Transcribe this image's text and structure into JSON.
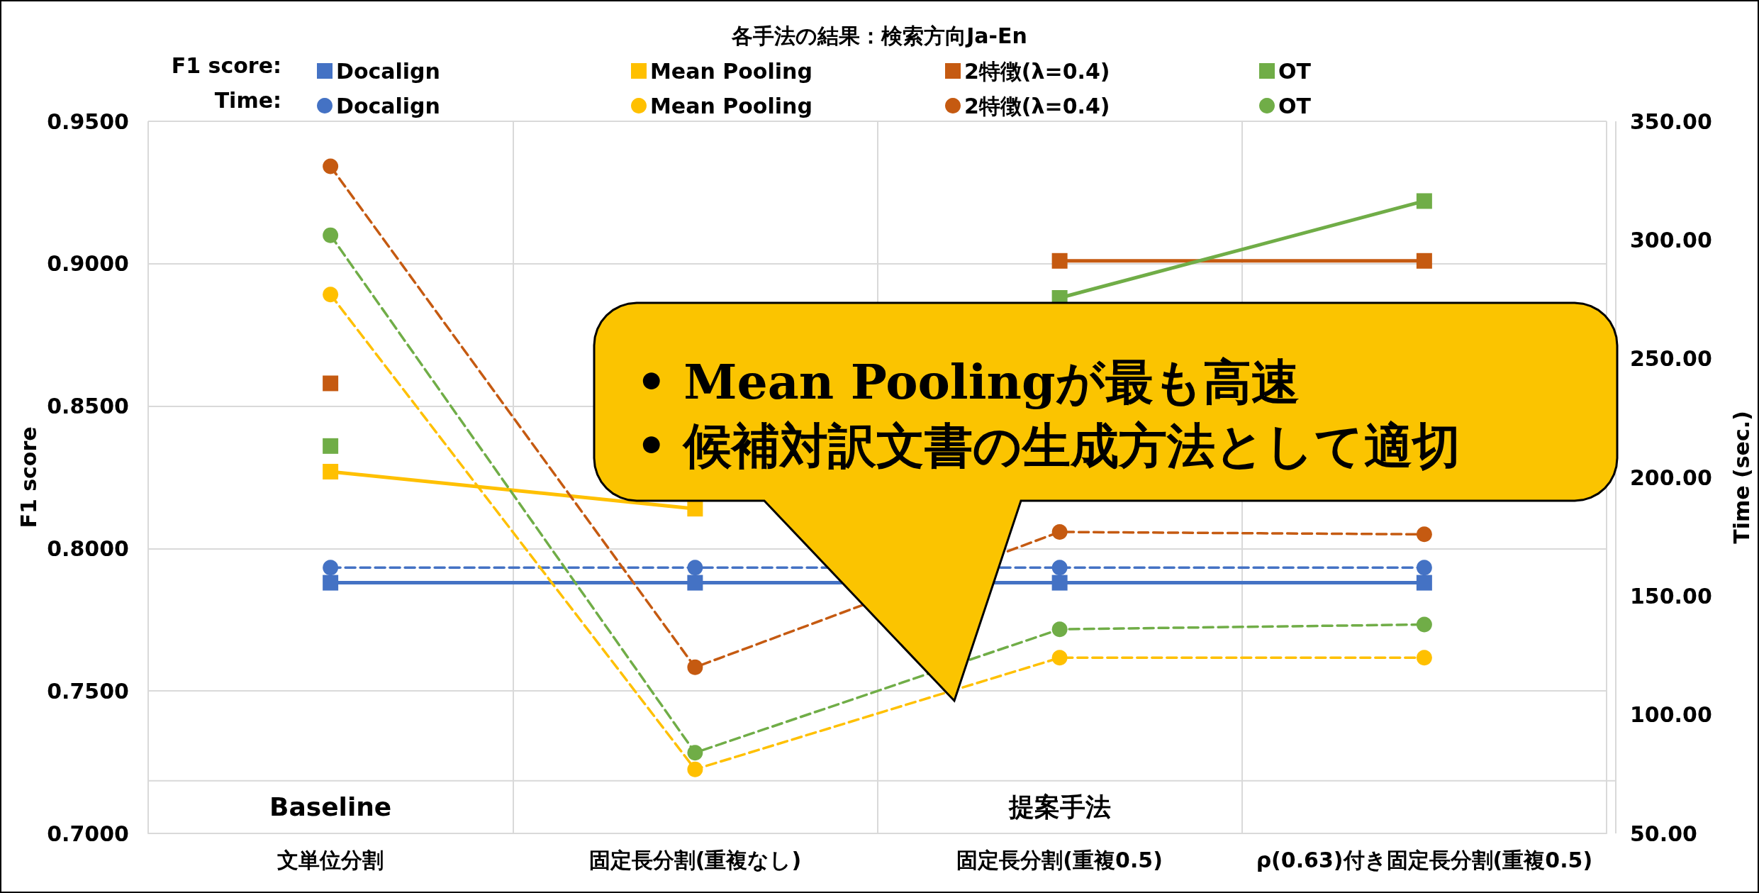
{
  "chart_data": {
    "type": "line",
    "title": "各手法の結果：検索方向Ja-En",
    "xlabel": null,
    "ylabel": "F1 score",
    "y2label": "Time (sec.)",
    "categories": [
      "文単位分割",
      "固定長分割(重複なし)",
      "固定長分割(重複0.5)",
      "ρ(0.63)付き固定長分割(重複0.5)"
    ],
    "series": [
      {
        "name": "Docalign",
        "color": "#4472c4",
        "marker": "square",
        "line_style": "solid",
        "values": [
          0.788,
          0.788,
          0.788,
          0.788
        ]
      },
      {
        "name": "Mean Pooling",
        "color": "#ffc000",
        "marker": "square",
        "line_style": "solid",
        "values": [
          0.827,
          0.814,
          null,
          null
        ]
      },
      {
        "name": "2特徴(λ=0.4)",
        "color": "#c55a11",
        "marker": "square",
        "line_style": "solid",
        "values": [
          0.858,
          null,
          0.901,
          0.901
        ]
      },
      {
        "name": "OT",
        "color": "#70ad47",
        "marker": "square",
        "line_style": "solid",
        "values": [
          0.836,
          null,
          0.888,
          0.922
        ]
      },
      {
        "name": "Docalign",
        "color": "#4472c4",
        "marker": "circle",
        "line_style": "dashed",
        "axis": "y2",
        "values": [
          162,
          162,
          162,
          162
        ]
      },
      {
        "name": "Mean Pooling",
        "color": "#ffc000",
        "marker": "circle",
        "line_style": "dashed",
        "axis": "y2",
        "values": [
          277,
          77,
          124,
          124
        ]
      },
      {
        "name": "2特徴(λ=0.4)",
        "color": "#c55a11",
        "marker": "circle",
        "line_style": "dashed",
        "axis": "y2",
        "values": [
          331,
          120,
          177,
          176
        ]
      },
      {
        "name": "OT",
        "color": "#70ad47",
        "marker": "circle",
        "line_style": "dashed",
        "axis": "y2",
        "values": [
          302,
          84,
          136,
          138
        ]
      }
    ],
    "ylim": [
      0.7,
      0.95
    ],
    "yticks": [
      {
        "value": 0.7,
        "label": "0.7000"
      },
      {
        "value": 0.75,
        "label": "0.7500"
      },
      {
        "value": 0.8,
        "label": "0.8000"
      },
      {
        "value": 0.85,
        "label": "0.8500"
      },
      {
        "value": 0.9,
        "label": "0.9000"
      },
      {
        "value": 0.95,
        "label": "0.9500"
      }
    ],
    "y2lim": [
      50,
      350
    ],
    "y2ticks": [
      {
        "value": 50,
        "label": "50.00"
      },
      {
        "value": 100,
        "label": "100.00"
      },
      {
        "value": 150,
        "label": "150.00"
      },
      {
        "value": 200,
        "label": "200.00"
      },
      {
        "value": 250,
        "label": "250.00"
      },
      {
        "value": 300,
        "label": "300.00"
      },
      {
        "value": 350,
        "label": "350.00"
      }
    ],
    "grid": true,
    "legend": "top",
    "annotations": [
      "• Mean Poolingが最も高速",
      "• 候補対訳文書の生成方法として適切",
      "F1 score:",
      "Time:",
      "Baseline",
      "提案手法"
    ]
  }
}
